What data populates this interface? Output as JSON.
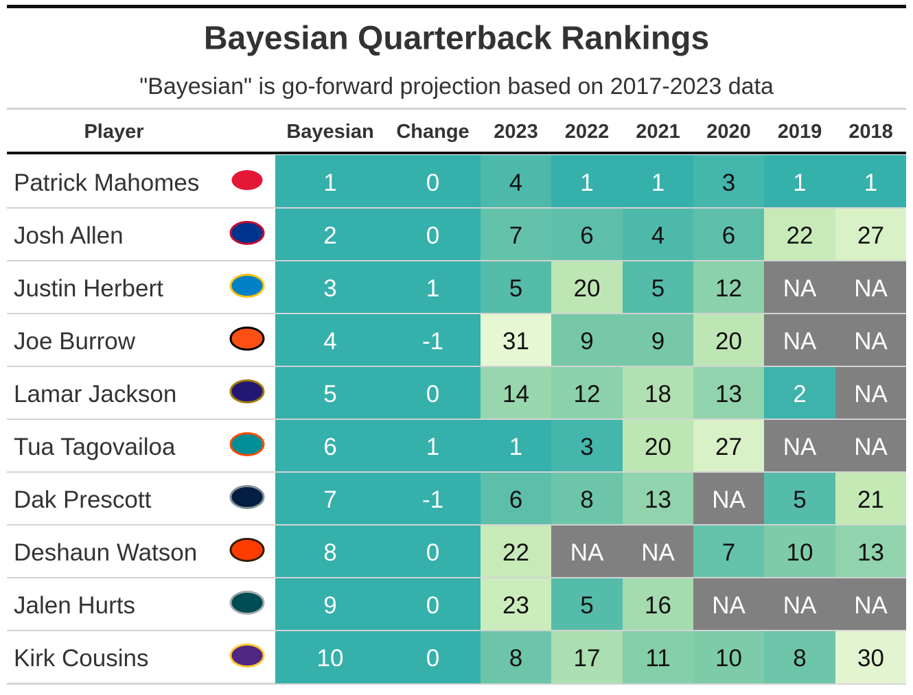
{
  "title": "Bayesian Quarterback Rankings",
  "subtitle": "\"Bayesian\" is go-forward projection based on 2017-2023 data",
  "columns": [
    "Player",
    "Bayesian",
    "Change",
    "2023",
    "2022",
    "2021",
    "2020",
    "2019",
    "2018"
  ],
  "rows": [
    {
      "player": "Patrick Mahomes",
      "values": [
        1,
        0,
        4,
        1,
        1,
        3,
        1,
        1
      ]
    },
    {
      "player": "Josh Allen",
      "values": [
        2,
        0,
        7,
        6,
        4,
        6,
        22,
        27
      ]
    },
    {
      "player": "Justin Herbert",
      "values": [
        3,
        1,
        5,
        20,
        5,
        12,
        "NA",
        "NA"
      ]
    },
    {
      "player": "Joe Burrow",
      "values": [
        4,
        -1,
        31,
        9,
        9,
        20,
        "NA",
        "NA"
      ]
    },
    {
      "player": "Lamar Jackson",
      "values": [
        5,
        0,
        14,
        12,
        18,
        13,
        2,
        "NA"
      ]
    },
    {
      "player": "Tua Tagovailoa",
      "values": [
        6,
        1,
        1,
        3,
        20,
        27,
        "NA",
        "NA"
      ]
    },
    {
      "player": "Dak Prescott",
      "values": [
        7,
        -1,
        6,
        8,
        13,
        "NA",
        5,
        21
      ]
    },
    {
      "player": "Deshaun Watson",
      "values": [
        8,
        0,
        22,
        "NA",
        "NA",
        7,
        10,
        13
      ]
    },
    {
      "player": "Jalen Hurts",
      "values": [
        9,
        0,
        23,
        5,
        16,
        "NA",
        "NA",
        "NA"
      ]
    },
    {
      "player": "Kirk Cousins",
      "values": [
        10,
        0,
        8,
        17,
        11,
        10,
        8,
        30
      ]
    }
  ]
}
